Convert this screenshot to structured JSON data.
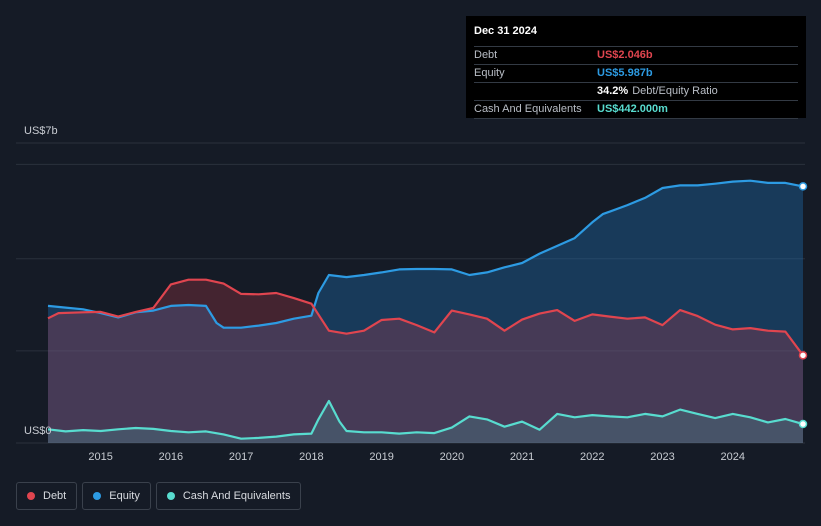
{
  "tooltip": {
    "date": "Dec 31 2024",
    "rows": [
      {
        "label": "Debt",
        "value": "US$2.046b",
        "color": "#e0454f"
      },
      {
        "label": "Equity",
        "value": "US$5.987b",
        "color": "#2d9be3"
      },
      {
        "label": "",
        "value": "34.2%",
        "sub": "Debt/Equity Ratio",
        "color": "#ffffff"
      },
      {
        "label": "Cash And Equivalents",
        "value": "US$442.000m",
        "color": "#58dccf"
      }
    ]
  },
  "legend": [
    {
      "label": "Debt",
      "color": "#e0454f"
    },
    {
      "label": "Equity",
      "color": "#2d9be3"
    },
    {
      "label": "Cash And Equivalents",
      "color": "#58dccf"
    }
  ],
  "chart_data": {
    "type": "area",
    "y_unit_top_label": "US$7b",
    "y_unit_bottom_label": "US$0",
    "ylim": [
      0,
      7
    ],
    "xlim": [
      2014.25,
      2025.0
    ],
    "x_tick_labels": [
      "2015",
      "2016",
      "2017",
      "2018",
      "2019",
      "2020",
      "2021",
      "2022",
      "2023",
      "2024"
    ],
    "x_ticks": [
      2015,
      2016,
      2017,
      2018,
      2019,
      2020,
      2021,
      2022,
      2023,
      2024
    ],
    "series": [
      {
        "name": "Equity",
        "color": "#2d9be3",
        "x": [
          2014.25,
          2014.5,
          2014.75,
          2015.0,
          2015.25,
          2015.5,
          2015.75,
          2016.0,
          2016.25,
          2016.5,
          2016.65,
          2016.75,
          2017.0,
          2017.25,
          2017.5,
          2017.75,
          2018.0,
          2018.1,
          2018.25,
          2018.5,
          2018.75,
          2019.0,
          2019.25,
          2019.5,
          2019.75,
          2020.0,
          2020.25,
          2020.5,
          2020.75,
          2021.0,
          2021.25,
          2021.5,
          2021.75,
          2022.0,
          2022.15,
          2022.25,
          2022.5,
          2022.75,
          2023.0,
          2023.25,
          2023.5,
          2023.75,
          2024.0,
          2024.25,
          2024.5,
          2024.75,
          2025.0
        ],
        "values": [
          3.2,
          3.16,
          3.12,
          3.03,
          2.93,
          3.05,
          3.09,
          3.2,
          3.22,
          3.2,
          2.8,
          2.69,
          2.69,
          2.74,
          2.8,
          2.9,
          2.97,
          3.5,
          3.92,
          3.87,
          3.92,
          3.98,
          4.05,
          4.06,
          4.06,
          4.05,
          3.92,
          3.98,
          4.1,
          4.2,
          4.42,
          4.6,
          4.78,
          5.15,
          5.34,
          5.4,
          5.55,
          5.72,
          5.95,
          6.01,
          6.01,
          6.05,
          6.1,
          6.12,
          6.07,
          6.07,
          5.987
        ]
      },
      {
        "name": "Debt",
        "color": "#e0454f",
        "x": [
          2014.25,
          2014.4,
          2014.75,
          2015.0,
          2015.25,
          2015.5,
          2015.75,
          2016.0,
          2016.25,
          2016.5,
          2016.75,
          2017.0,
          2017.25,
          2017.5,
          2017.75,
          2018.0,
          2018.25,
          2018.5,
          2018.75,
          2019.0,
          2019.25,
          2019.5,
          2019.75,
          2020.0,
          2020.25,
          2020.5,
          2020.75,
          2021.0,
          2021.25,
          2021.5,
          2021.75,
          2022.0,
          2022.25,
          2022.5,
          2022.75,
          2023.0,
          2023.25,
          2023.5,
          2023.75,
          2024.0,
          2024.25,
          2024.5,
          2024.75,
          2025.0
        ],
        "values": [
          2.91,
          3.03,
          3.05,
          3.06,
          2.95,
          3.06,
          3.15,
          3.7,
          3.81,
          3.81,
          3.72,
          3.48,
          3.47,
          3.5,
          3.38,
          3.25,
          2.62,
          2.55,
          2.62,
          2.87,
          2.9,
          2.75,
          2.58,
          3.09,
          3.0,
          2.9,
          2.62,
          2.88,
          3.02,
          3.1,
          2.85,
          3.0,
          2.95,
          2.9,
          2.93,
          2.75,
          3.1,
          2.96,
          2.76,
          2.65,
          2.68,
          2.62,
          2.6,
          2.046
        ]
      },
      {
        "name": "Cash And Equivalents",
        "color": "#58dccf",
        "x": [
          2014.25,
          2014.5,
          2014.75,
          2015.0,
          2015.25,
          2015.5,
          2015.75,
          2016.0,
          2016.25,
          2016.5,
          2016.75,
          2017.0,
          2017.25,
          2017.5,
          2017.75,
          2018.0,
          2018.1,
          2018.25,
          2018.4,
          2018.5,
          2018.75,
          2019.0,
          2019.25,
          2019.5,
          2019.75,
          2020.0,
          2020.25,
          2020.5,
          2020.75,
          2021.0,
          2021.25,
          2021.5,
          2021.75,
          2022.0,
          2022.25,
          2022.5,
          2022.75,
          2023.0,
          2023.25,
          2023.5,
          2023.75,
          2024.0,
          2024.25,
          2024.5,
          2024.75,
          2025.0
        ],
        "values": [
          0.32,
          0.27,
          0.3,
          0.28,
          0.32,
          0.35,
          0.33,
          0.28,
          0.25,
          0.27,
          0.2,
          0.1,
          0.12,
          0.15,
          0.2,
          0.22,
          0.55,
          0.98,
          0.5,
          0.28,
          0.25,
          0.25,
          0.22,
          0.25,
          0.23,
          0.36,
          0.62,
          0.55,
          0.38,
          0.5,
          0.31,
          0.68,
          0.6,
          0.65,
          0.62,
          0.6,
          0.68,
          0.62,
          0.78,
          0.68,
          0.58,
          0.68,
          0.6,
          0.48,
          0.56,
          0.442
        ]
      }
    ],
    "grid": true
  }
}
